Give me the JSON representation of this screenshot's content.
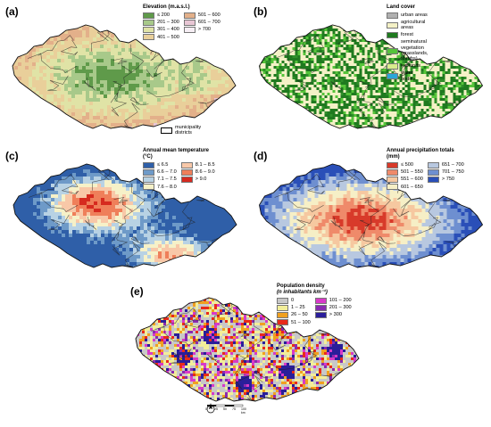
{
  "panels": [
    {
      "letter": "(a)",
      "legend": {
        "title": "Elevation (m.a.s.l.)",
        "items": [
          {
            "label": "≤ 200",
            "color": "#5f9a4a"
          },
          {
            "label": "501 – 600",
            "color": "#e3b08a"
          },
          {
            "label": "201 – 300",
            "color": "#a8c98a"
          },
          {
            "label": "601 – 700",
            "color": "#e8c6d4"
          },
          {
            "label": "301 – 400",
            "color": "#e0e3a6"
          },
          {
            "label": "> 700",
            "color": "#f6eef4"
          },
          {
            "label": "401 – 500",
            "color": "#e9cf9a"
          }
        ]
      },
      "municipality_label": "municipality districts",
      "palette": [
        "#5f9a4a",
        "#a8c98a",
        "#e0e3a6",
        "#e9cf9a",
        "#e3b08a",
        "#e8c6d4"
      ]
    },
    {
      "letter": "(b)",
      "legend": {
        "title": "Land cover",
        "items": [
          {
            "label": "urban areas",
            "color": "#b0b0b0"
          },
          {
            "label": "agricultural areas",
            "color": "#f4f1c6"
          },
          {
            "label": "forest",
            "color": "#1f7a1f"
          },
          {
            "label": "seminatural vegetation (grasslands, shrubs)",
            "color": "#55c43a"
          },
          {
            "label": "wetlands",
            "color": "#d8ec8c"
          },
          {
            "label": "water bodies",
            "color": "#2aa6d8"
          }
        ]
      },
      "palette": [
        "#f4f1c6",
        "#1f7a1f",
        "#55c43a",
        "#f4f1c6",
        "#2f8f2a"
      ]
    },
    {
      "letter": "(c)",
      "legend": {
        "title": "Annual mean temperature (°C)",
        "items": [
          {
            "label": "≤ 6.5",
            "color": "#2f5fa8"
          },
          {
            "label": "8.1 – 8.5",
            "color": "#f8c8a8"
          },
          {
            "label": "6.6 – 7.0",
            "color": "#6e9ac8"
          },
          {
            "label": "8.6 – 9.0",
            "color": "#ef7f5a"
          },
          {
            "label": "7.1 – 7.5",
            "color": "#b8d2e4"
          },
          {
            "label": "> 9.0",
            "color": "#d62a1f"
          },
          {
            "label": "7.6 – 8.0",
            "color": "#f6f1c8"
          }
        ]
      },
      "palette": [
        "#2f5fa8",
        "#6e9ac8",
        "#b8d2e4",
        "#f6f1c8",
        "#f8c8a8",
        "#ef7f5a",
        "#d62a1f"
      ]
    },
    {
      "letter": "(d)",
      "legend": {
        "title": "Annual precipitation totals (mm)",
        "items": [
          {
            "label": "≤ 500",
            "color": "#d83a2a"
          },
          {
            "label": "651 – 700",
            "color": "#b8c8e0"
          },
          {
            "label": "501 – 550",
            "color": "#ef8a6a"
          },
          {
            "label": "701 – 750",
            "color": "#6e8fd0"
          },
          {
            "label": "551 – 600",
            "color": "#f6c8a0"
          },
          {
            "label": "> 750",
            "color": "#2a4fb8"
          },
          {
            "label": "601 – 650",
            "color": "#f6efc6"
          }
        ]
      },
      "palette": [
        "#d83a2a",
        "#ef8a6a",
        "#f6c8a0",
        "#f6efc6",
        "#b8c8e0",
        "#6e8fd0",
        "#2a4fb8"
      ]
    },
    {
      "letter": "(e)",
      "legend": {
        "title": "Population density",
        "subtitle": "(n inhabitants km⁻¹)",
        "items": [
          {
            "label": "0",
            "color": "#c8c8c8"
          },
          {
            "label": "101 – 200",
            "color": "#d83ac8"
          },
          {
            "label": "1 – 25",
            "color": "#f2ee9a"
          },
          {
            "label": "201 – 300",
            "color": "#8a2ab0"
          },
          {
            "label": "26 – 50",
            "color": "#f0a020"
          },
          {
            "label": "> 300",
            "color": "#2a1e9a"
          },
          {
            "label": "51 – 100",
            "color": "#e82a1a"
          }
        ]
      },
      "palette": [
        "#c8c8c8",
        "#f2ee9a",
        "#f0a020",
        "#e82a1a",
        "#d83ac8",
        "#8a2ab0",
        "#2a1e9a"
      ],
      "scale": {
        "ticks": [
          "0",
          "25",
          "50",
          "75",
          "100 km"
        ]
      }
    }
  ]
}
